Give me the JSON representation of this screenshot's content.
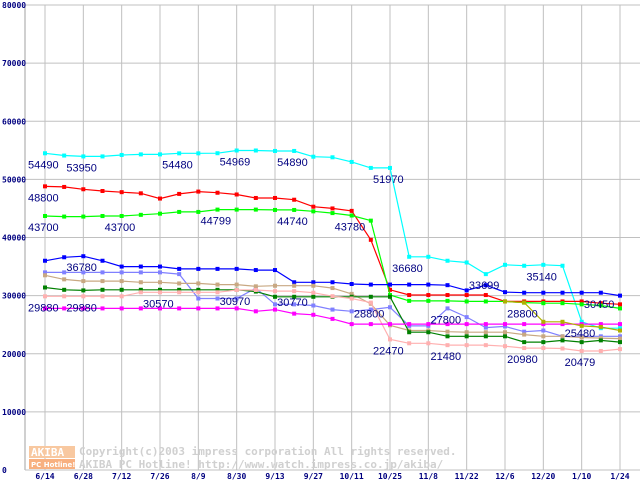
{
  "chart_data": {
    "type": "line",
    "title": "",
    "xlabel": "",
    "ylabel": "",
    "ylim": [
      0,
      80000
    ],
    "yticks": [
      "0",
      "10000",
      "20000",
      "30000",
      "40000",
      "50000",
      "60000",
      "70000",
      "80000"
    ],
    "x_tick_labels": [
      "6/14",
      "6/28",
      "7/12",
      "7/26",
      "8/9",
      "8/30",
      "9/13",
      "9/27",
      "10/11",
      "10/25",
      "11/8",
      "11/22",
      "12/6",
      "12/20",
      "1/10",
      "1/24"
    ],
    "points_per_label_interval": 2,
    "grid": true,
    "series": [
      {
        "name": "cyan",
        "color": "#00ffff",
        "values": [
          54490,
          54100,
          53950,
          53950,
          54200,
          54300,
          54300,
          54480,
          54480,
          54500,
          54969,
          54969,
          54890,
          54890,
          53900,
          53800,
          53000,
          51970,
          51970,
          36680,
          36680,
          36000,
          35700,
          33699,
          35300,
          35140,
          35300,
          35140,
          25500,
          24400,
          24400
        ]
      },
      {
        "name": "red",
        "color": "#ff0000",
        "values": [
          48800,
          48700,
          48300,
          48000,
          47800,
          47600,
          46700,
          47500,
          47900,
          47700,
          47400,
          46800,
          46800,
          46500,
          45300,
          45000,
          44580,
          39600,
          31000,
          30100,
          30100,
          30100,
          30100,
          30100,
          29000,
          29000,
          29000,
          29000,
          29000,
          28700,
          28500
        ]
      },
      {
        "name": "green",
        "color": "#00ff00",
        "values": [
          43700,
          43600,
          43600,
          43700,
          43700,
          43900,
          44100,
          44400,
          44400,
          44799,
          44799,
          44799,
          44740,
          44740,
          44500,
          44200,
          43780,
          42900,
          30100,
          29100,
          29100,
          29100,
          29000,
          29000,
          29000,
          28800,
          28700,
          28700,
          28500,
          28300,
          27800
        ]
      },
      {
        "name": "blue",
        "color": "#0000ff",
        "values": [
          36000,
          36600,
          36780,
          36000,
          35000,
          35000,
          35000,
          34600,
          34600,
          34600,
          34600,
          34400,
          34400,
          32300,
          32300,
          32300,
          32000,
          31900,
          31900,
          31900,
          31900,
          31800,
          30900,
          31800,
          30600,
          30500,
          30500,
          30500,
          30500,
          30500,
          30000
        ]
      },
      {
        "name": "periwinkle",
        "color": "#8080ff",
        "values": [
          34000,
          34000,
          34000,
          34000,
          34000,
          34000,
          34000,
          33700,
          29500,
          29500,
          29500,
          31300,
          28500,
          28500,
          28300,
          27600,
          27300,
          27600,
          28000,
          24800,
          24800,
          27800,
          26300,
          24500,
          24700,
          23800,
          24000,
          23000,
          23000,
          23000,
          23000
        ]
      },
      {
        "name": "tan",
        "color": "#c8a882",
        "values": [
          33500,
          32800,
          32500,
          32500,
          32500,
          32300,
          32300,
          32100,
          32100,
          31900,
          31900,
          31600,
          31700,
          31700,
          31700,
          31300,
          30300,
          28600,
          24900,
          24000,
          24000,
          23800,
          23700,
          23700,
          23700,
          23300,
          23000,
          23000,
          22800,
          22700,
          22600
        ]
      },
      {
        "name": "dark-green",
        "color": "#008000",
        "values": [
          31400,
          31000,
          30900,
          31000,
          31000,
          31000,
          31000,
          31000,
          31000,
          31000,
          31000,
          30700,
          29800,
          29800,
          29800,
          29800,
          29800,
          29800,
          29800,
          23700,
          23700,
          23000,
          23000,
          23000,
          23000,
          22000,
          22000,
          22300,
          22000,
          22300,
          22000
        ]
      },
      {
        "name": "pink",
        "color": "#ffb0b0",
        "values": [
          29880,
          29880,
          29880,
          29880,
          29880,
          30570,
          30570,
          30570,
          30570,
          30570,
          30970,
          30970,
          30770,
          30770,
          30500,
          29900,
          29500,
          28800,
          22470,
          21800,
          21800,
          21480,
          21480,
          21480,
          21300,
          20980,
          20980,
          20900,
          20479,
          20479,
          20800
        ]
      },
      {
        "name": "magenta",
        "color": "#ff00ff",
        "values": [
          27800,
          27800,
          27800,
          27800,
          27800,
          27800,
          27800,
          27800,
          27800,
          27800,
          27800,
          27300,
          27600,
          26900,
          26700,
          26000,
          25100,
          25100,
          25100,
          25100,
          25100,
          25100,
          25100,
          25100,
          25100,
          25100,
          25100,
          25100,
          25100,
          25100,
          25100
        ]
      },
      {
        "name": "olive",
        "color": "#b0b000",
        "values": [
          null,
          null,
          null,
          null,
          null,
          null,
          null,
          null,
          null,
          null,
          null,
          null,
          null,
          null,
          null,
          null,
          null,
          null,
          null,
          null,
          null,
          null,
          null,
          null,
          29000,
          28800,
          25500,
          25500,
          24800,
          24600,
          24000
        ]
      }
    ],
    "annotations": [
      {
        "text": "54490",
        "at": 0,
        "value": 54490
      },
      {
        "text": "53950",
        "at": 2,
        "value": 53950
      },
      {
        "text": "54480",
        "at": 7,
        "value": 54480
      },
      {
        "text": "54969",
        "at": 10,
        "value": 54969
      },
      {
        "text": "54890",
        "at": 13,
        "value": 54890
      },
      {
        "text": "51970",
        "at": 18,
        "value": 51970
      },
      {
        "text": "48800",
        "at": 0,
        "value": 48800
      },
      {
        "text": "43700",
        "at": 0,
        "value": 43700
      },
      {
        "text": "43700",
        "at": 4,
        "value": 43700
      },
      {
        "text": "44799",
        "at": 9,
        "value": 44799
      },
      {
        "text": "44740",
        "at": 13,
        "value": 44740
      },
      {
        "text": "43780",
        "at": 16,
        "value": 43780
      },
      {
        "text": "36780",
        "at": 2,
        "value": 36780
      },
      {
        "text": "29880",
        "at": 0,
        "value": 29880
      },
      {
        "text": "29880",
        "at": 2,
        "value": 29880
      },
      {
        "text": "30570",
        "at": 6,
        "value": 30570
      },
      {
        "text": "30970",
        "at": 10,
        "value": 30970
      },
      {
        "text": "30770",
        "at": 13,
        "value": 30770
      },
      {
        "text": "28800",
        "at": 17,
        "value": 28800
      },
      {
        "text": "36680",
        "at": 19,
        "value": 36680
      },
      {
        "text": "22470",
        "at": 18,
        "value": 22470
      },
      {
        "text": "27800",
        "at": 21,
        "value": 27800
      },
      {
        "text": "21480",
        "at": 21,
        "value": 21480
      },
      {
        "text": "33699",
        "at": 23,
        "value": 33699
      },
      {
        "text": "28800",
        "at": 25,
        "value": 28800
      },
      {
        "text": "20980",
        "at": 25,
        "value": 20980
      },
      {
        "text": "35140",
        "at": 26,
        "value": 35140
      },
      {
        "text": "25480",
        "at": 28,
        "value": 25480
      },
      {
        "text": "20479",
        "at": 28,
        "value": 20479
      },
      {
        "text": "30450",
        "at": 29,
        "value": 30450
      }
    ]
  },
  "watermark": {
    "logo_top": "AKIBA",
    "logo_bottom": "PC Hotline!",
    "line1": "Copyright(c)2003 impress corporation All rights reserved.",
    "line2": "AKIBA PC Hotline!  http://www.watch.impress.co.jp/akiba/"
  }
}
